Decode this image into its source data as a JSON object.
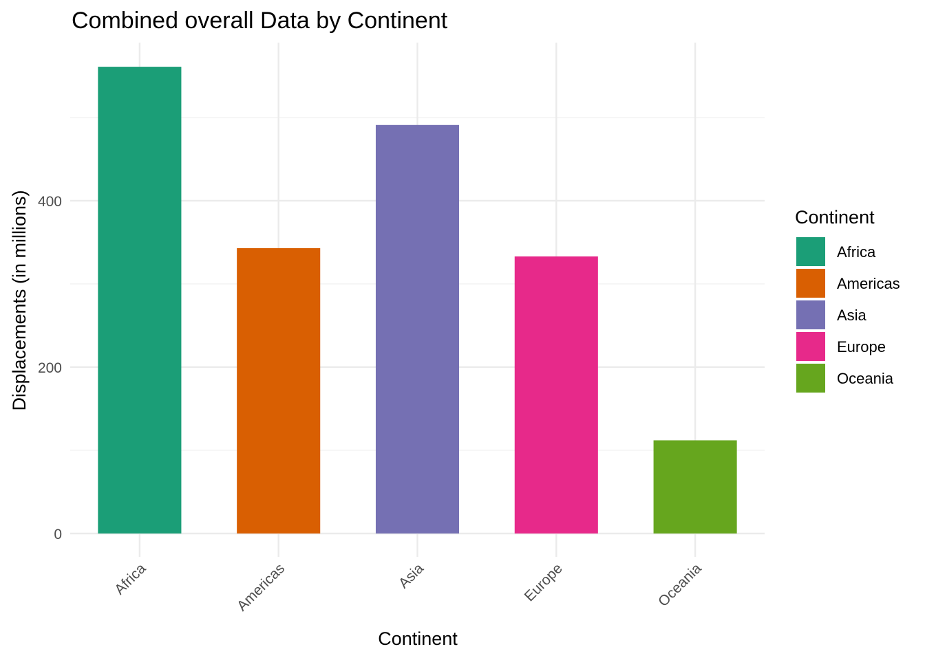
{
  "chart_data": {
    "type": "bar",
    "title": "Combined overall Data by Continent",
    "xlabel": "Continent",
    "ylabel": "Displacements (in millions)",
    "categories": [
      "Africa",
      "Americas",
      "Asia",
      "Europe",
      "Oceania"
    ],
    "values": [
      561,
      343,
      491,
      333,
      112
    ],
    "colors": [
      "#1b9e77",
      "#d95f02",
      "#7570b3",
      "#e7298a",
      "#66a61e"
    ],
    "ylim": [
      0,
      590
    ],
    "yticks": [
      0,
      200,
      400
    ],
    "y_minor_ticks": [
      100,
      300,
      500
    ],
    "grid": true,
    "legend": {
      "title": "Continent",
      "position": "right",
      "entries": [
        "Africa",
        "Americas",
        "Asia",
        "Europe",
        "Oceania"
      ]
    }
  }
}
